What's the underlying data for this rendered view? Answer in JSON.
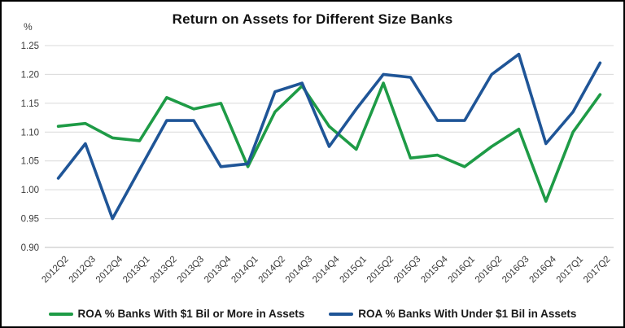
{
  "chart_data": {
    "type": "line",
    "title": "Return on Assets for Different Size Banks",
    "unit_label": "%",
    "xlabel": "",
    "ylabel": "%",
    "ylim": [
      0.9,
      1.25
    ],
    "y_ticks": [
      "1.25",
      "1.20",
      "1.15",
      "1.10",
      "1.05",
      "1.00",
      "0.95",
      "0.90"
    ],
    "grid": "horizontal",
    "legend_position": "bottom",
    "categories": [
      "2012Q2",
      "2012Q3",
      "2012Q4",
      "2013Q1",
      "2013Q2",
      "2013Q3",
      "2013Q4",
      "2014Q1",
      "2014Q2",
      "2014Q3",
      "2014Q4",
      "2015Q1",
      "2015Q2",
      "2015Q3",
      "2015Q4",
      "2016Q1",
      "2016Q2",
      "2016Q3",
      "2016Q4",
      "2017Q1",
      "2017Q2"
    ],
    "series": [
      {
        "name": "ROA % Banks With $1 Bil or More in Assets",
        "color": "#1e9b46",
        "values": [
          1.11,
          1.115,
          1.09,
          1.085,
          1.16,
          1.14,
          1.15,
          1.04,
          1.135,
          1.18,
          1.11,
          1.07,
          1.185,
          1.055,
          1.06,
          1.04,
          1.075,
          1.105,
          0.98,
          1.1,
          1.165
        ]
      },
      {
        "name": "ROA %  Banks With Under $1 Bil in Assets",
        "color": "#1f5597",
        "values": [
          1.02,
          1.08,
          0.95,
          1.035,
          1.12,
          1.12,
          1.04,
          1.045,
          1.17,
          1.185,
          1.075,
          1.14,
          1.2,
          1.195,
          1.12,
          1.12,
          1.2,
          1.235,
          1.08,
          1.135,
          1.22
        ]
      }
    ],
    "colors": {
      "gridline": "#d9d9d9",
      "axis_line": "#bfbfbf",
      "tick_text": "#3f3f3f"
    }
  }
}
